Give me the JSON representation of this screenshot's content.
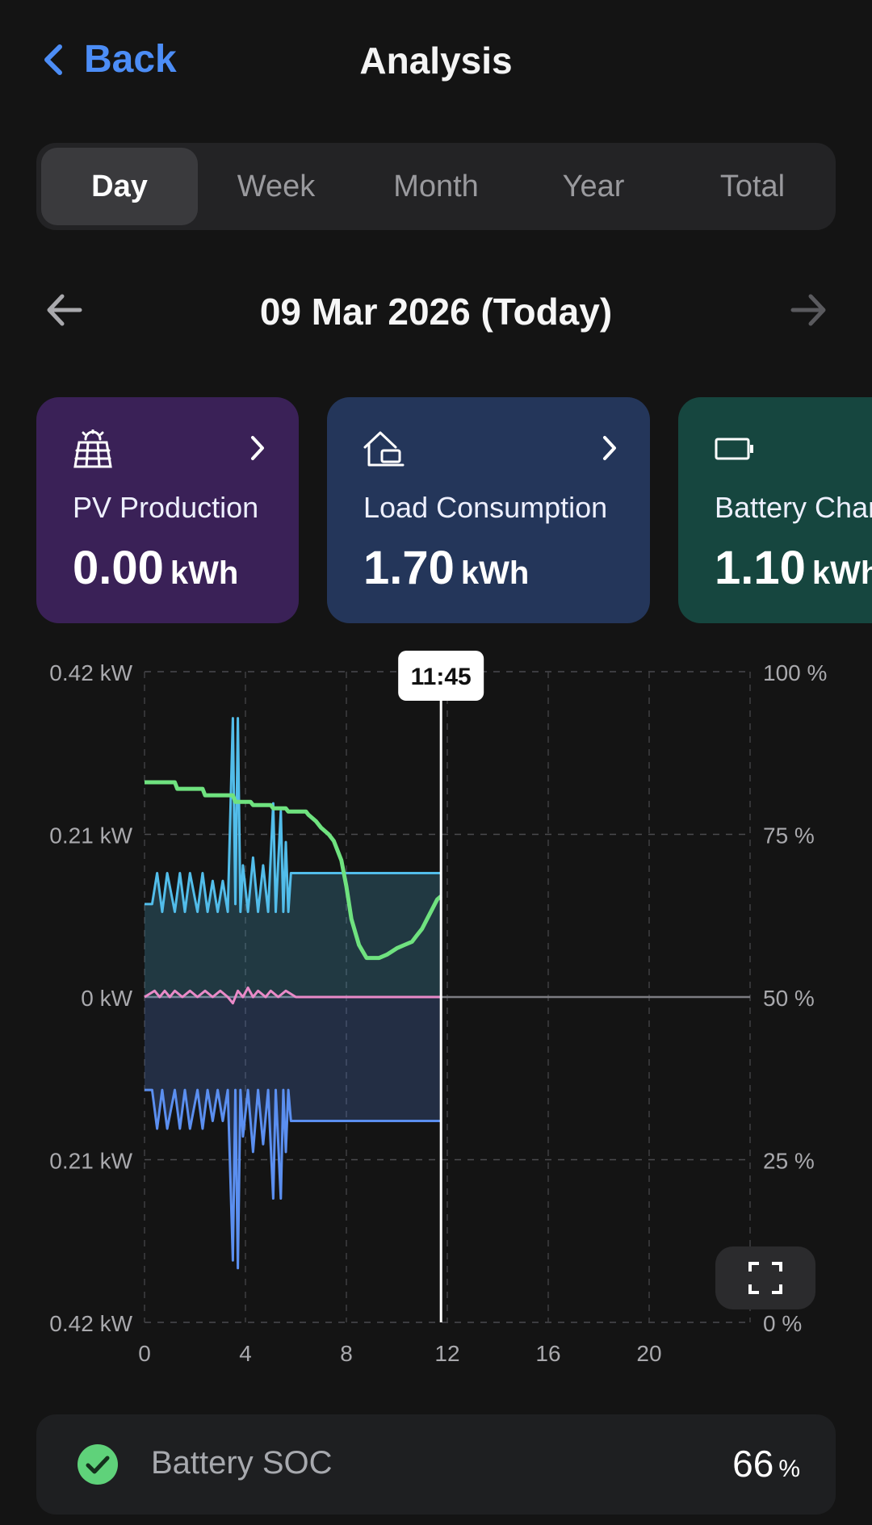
{
  "header": {
    "back_label": "Back",
    "title": "Analysis"
  },
  "tabs": [
    {
      "label": "Day",
      "active": true
    },
    {
      "label": "Week",
      "active": false
    },
    {
      "label": "Month",
      "active": false
    },
    {
      "label": "Year",
      "active": false
    },
    {
      "label": "Total",
      "active": false
    }
  ],
  "date_nav": {
    "date_label": "09 Mar 2026 (Today)"
  },
  "cards": [
    {
      "label": "PV Production",
      "value": "0.00",
      "unit": "kWh",
      "icon": "solar-panel-icon",
      "color": "#3a2157"
    },
    {
      "label": "Load Consumption",
      "value": "1.70",
      "unit": "kWh",
      "icon": "home-load-icon",
      "color": "#24365a"
    },
    {
      "label": "Battery Char",
      "value": "1.10",
      "unit": "kWh",
      "icon": "battery-icon",
      "color": "#16463f"
    }
  ],
  "chart": {
    "cursor_label": "11:45",
    "left_axis_labels": [
      "0.42 kW",
      "0.21 kW",
      "0 kW",
      "0.21 kW",
      "0.42 kW"
    ],
    "right_axis_labels": [
      "100 %",
      "75 %",
      "50 %",
      "25 %",
      "0 %"
    ],
    "x_axis_labels": [
      "0",
      "4",
      "8",
      "12",
      "16",
      "20"
    ]
  },
  "chart_data": {
    "type": "line",
    "xlim": [
      0,
      24
    ],
    "ylim_left": [
      -0.42,
      0.42
    ],
    "ylim_right": [
      0,
      100
    ],
    "cursor_hour": 11.75,
    "grid": true,
    "series": [
      {
        "color": "#52bdea",
        "axis": "left",
        "fill": true,
        "x": [
          0,
          0.3,
          0.5,
          0.7,
          0.9,
          1.2,
          1.4,
          1.6,
          1.8,
          2.1,
          2.3,
          2.5,
          2.7,
          2.9,
          3.1,
          3.3,
          3.5,
          3.6,
          3.7,
          3.8,
          3.9,
          4.1,
          4.3,
          4.5,
          4.7,
          4.9,
          5.1,
          5.2,
          5.4,
          5.5,
          5.6,
          5.7,
          5.8,
          5.9,
          6.0,
          11.75
        ],
        "y": [
          0.12,
          0.12,
          0.16,
          0.11,
          0.16,
          0.11,
          0.16,
          0.11,
          0.16,
          0.11,
          0.16,
          0.11,
          0.15,
          0.11,
          0.15,
          0.11,
          0.36,
          0.12,
          0.36,
          0.11,
          0.17,
          0.11,
          0.18,
          0.11,
          0.17,
          0.11,
          0.25,
          0.11,
          0.24,
          0.11,
          0.2,
          0.11,
          0.16,
          0.16,
          0.16,
          0.16
        ]
      },
      {
        "color": "#5b8ff0",
        "axis": "left",
        "fill": true,
        "x": [
          0,
          0.3,
          0.5,
          0.7,
          0.9,
          1.2,
          1.4,
          1.6,
          1.8,
          2.1,
          2.3,
          2.5,
          2.7,
          2.9,
          3.1,
          3.3,
          3.5,
          3.6,
          3.7,
          3.8,
          3.9,
          4.1,
          4.3,
          4.5,
          4.7,
          4.9,
          5.1,
          5.2,
          5.4,
          5.5,
          5.6,
          5.7,
          5.8,
          5.9,
          6.0,
          11.75
        ],
        "y": [
          -0.12,
          -0.12,
          -0.17,
          -0.12,
          -0.17,
          -0.12,
          -0.17,
          -0.12,
          -0.17,
          -0.12,
          -0.17,
          -0.12,
          -0.16,
          -0.12,
          -0.16,
          -0.12,
          -0.34,
          -0.12,
          -0.35,
          -0.12,
          -0.18,
          -0.12,
          -0.2,
          -0.12,
          -0.19,
          -0.12,
          -0.26,
          -0.12,
          -0.26,
          -0.12,
          -0.2,
          -0.12,
          -0.16,
          -0.16,
          -0.16,
          -0.16
        ]
      },
      {
        "color": "#e98ac8",
        "axis": "left",
        "fill": false,
        "x": [
          0,
          0.4,
          0.6,
          0.8,
          1.0,
          1.2,
          1.5,
          1.8,
          2.1,
          2.4,
          2.7,
          3.0,
          3.3,
          3.5,
          3.7,
          3.9,
          4.1,
          4.3,
          4.5,
          4.8,
          5.0,
          5.3,
          5.6,
          6.0,
          11.75
        ],
        "y": [
          0,
          0.008,
          0,
          0.008,
          0,
          0.008,
          0,
          0.008,
          0,
          0.008,
          0,
          0.008,
          0,
          -0.008,
          0.008,
          0,
          0.012,
          0,
          0.008,
          0,
          0.008,
          0,
          0.008,
          0,
          0
        ]
      },
      {
        "color": "#6fe27f",
        "axis": "right",
        "fill": false,
        "x": [
          0,
          1.2,
          1.3,
          2.3,
          2.4,
          3.5,
          3.6,
          4.2,
          4.3,
          5.0,
          5.1,
          5.6,
          5.7,
          6.4,
          6.5,
          6.8,
          7.0,
          7.3,
          7.5,
          7.8,
          8.0,
          8.2,
          8.5,
          8.8,
          9.0,
          9.3,
          9.6,
          9.8,
          10.0,
          10.3,
          10.6,
          10.8,
          11.0,
          11.2,
          11.4,
          11.6,
          11.75
        ],
        "y": [
          83,
          83,
          82,
          82,
          81,
          81,
          80,
          80,
          79.5,
          79.5,
          79,
          79,
          78.5,
          78.5,
          78,
          77,
          76,
          75,
          74,
          71,
          67,
          62,
          58,
          56,
          56,
          56,
          56.5,
          57,
          57.5,
          58,
          58.5,
          59.5,
          60.5,
          62,
          63.5,
          65,
          65.5
        ]
      }
    ]
  },
  "battery_soc": {
    "label": "Battery SOC",
    "value": "66",
    "unit": "%"
  }
}
